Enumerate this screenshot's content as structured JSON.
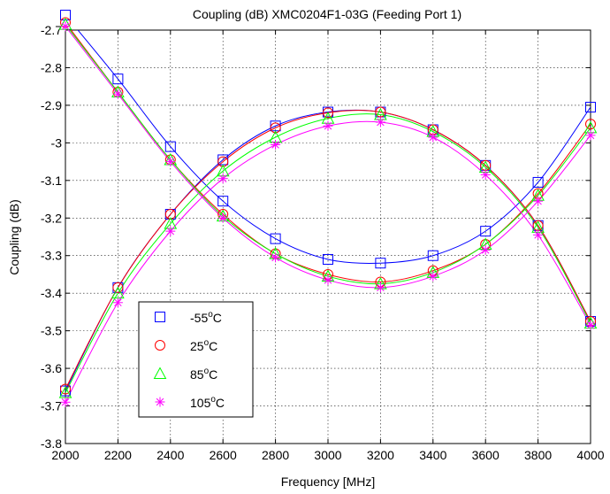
{
  "chart_data": {
    "type": "line",
    "title": "Coupling (dB) XMC0204F1-03G (Feeding Port 1)",
    "xlabel": "Frequency [MHz]",
    "ylabel": "Coupling (dB)",
    "xlim": [
      2000,
      4000
    ],
    "ylim": [
      -3.8,
      -2.7
    ],
    "x_ticks": [
      "2000",
      "2200",
      "2400",
      "2600",
      "2800",
      "3000",
      "3200",
      "3400",
      "3600",
      "3800",
      "4000"
    ],
    "y_ticks": [
      "-2.7",
      "-2.8",
      "-2.9",
      "-3",
      "-3.1",
      "-3.2",
      "-3.3",
      "-3.4",
      "-3.5",
      "-3.6",
      "-3.7",
      "-3.8"
    ],
    "grid": true,
    "legend_position": "lower-left",
    "x": [
      2000,
      2200,
      2400,
      2600,
      2800,
      3000,
      3200,
      3400,
      3600,
      3800,
      4000
    ],
    "series": [
      {
        "name": "-55°C",
        "marker": "square",
        "color": "#0000ff",
        "values_falling": [
          -2.66,
          -2.83,
          -3.01,
          -3.155,
          -3.255,
          -3.31,
          -3.32,
          -3.3,
          -3.235,
          -3.105,
          -2.905
        ],
        "values_rising": [
          -3.66,
          -3.385,
          -3.19,
          -3.045,
          -2.955,
          -2.918,
          -2.918,
          -2.965,
          -3.06,
          -3.22,
          -3.475
        ]
      },
      {
        "name": "25°C",
        "marker": "circle",
        "color": "#ff0000",
        "values_falling": [
          -2.68,
          -2.865,
          -3.045,
          -3.19,
          -3.295,
          -3.35,
          -3.37,
          -3.34,
          -3.27,
          -3.135,
          -2.95
        ],
        "values_rising": [
          -3.655,
          -3.385,
          -3.19,
          -3.05,
          -2.96,
          -2.92,
          -2.918,
          -2.965,
          -3.06,
          -3.22,
          -3.475
        ]
      },
      {
        "name": "85°C",
        "marker": "triangle",
        "color": "#00ff00",
        "values_falling": [
          -2.685,
          -2.865,
          -3.045,
          -3.195,
          -3.295,
          -3.355,
          -3.375,
          -3.345,
          -3.27,
          -3.14,
          -2.96
        ],
        "values_rising": [
          -3.665,
          -3.4,
          -3.215,
          -3.075,
          -2.985,
          -2.935,
          -2.925,
          -2.97,
          -3.065,
          -3.225,
          -3.48
        ]
      },
      {
        "name": "105°C",
        "marker": "star",
        "color": "#ff00ff",
        "values_falling": [
          -2.69,
          -2.87,
          -3.05,
          -3.2,
          -3.305,
          -3.365,
          -3.385,
          -3.355,
          -3.285,
          -3.155,
          -2.98
        ],
        "values_rising": [
          -3.69,
          -3.425,
          -3.235,
          -3.095,
          -3.005,
          -2.955,
          -2.945,
          -2.985,
          -3.085,
          -3.245,
          -3.485
        ]
      }
    ],
    "legend_labels": [
      {
        "prefix": "-55",
        "sup": "o",
        "suffix": "C"
      },
      {
        "prefix": "25",
        "sup": "o",
        "suffix": "C"
      },
      {
        "prefix": "85",
        "sup": "o",
        "suffix": "C"
      },
      {
        "prefix": "105",
        "sup": "o",
        "suffix": "C"
      }
    ]
  }
}
